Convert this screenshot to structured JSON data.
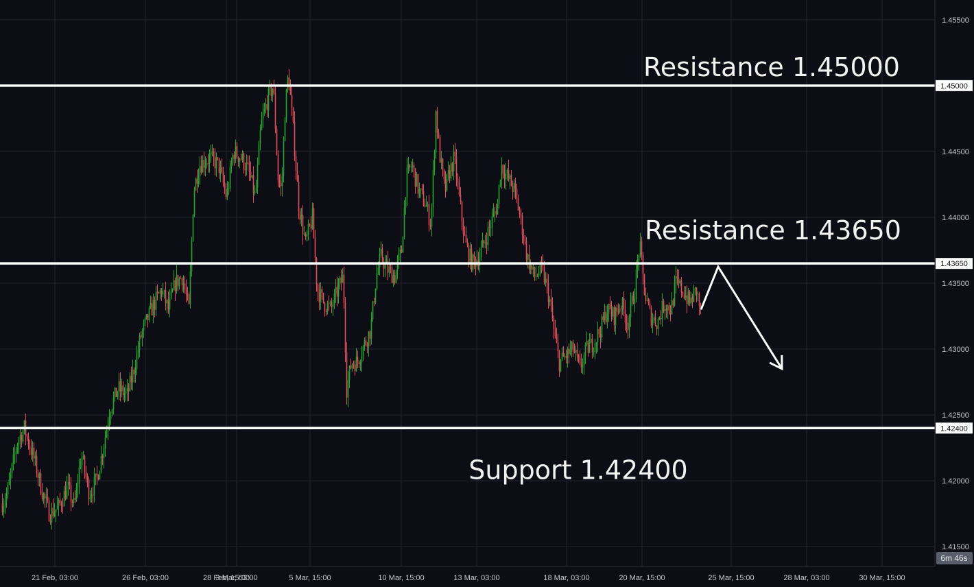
{
  "chart_data": {
    "type": "candlestick",
    "ylim": [
      1.4135,
      1.4565
    ],
    "grid": true,
    "colors": {
      "background": "#0d0d16",
      "grid": "#24252f",
      "up": "#26a82f",
      "down": "#e2505b",
      "level_line": "#ffffff",
      "axis_text": "#c9cbd3"
    },
    "y_ticks": [
      {
        "value": 1.455,
        "label": "1.45500"
      },
      {
        "value": 1.445,
        "label": "1.44500"
      },
      {
        "value": 1.44,
        "label": "1.44000"
      },
      {
        "value": 1.435,
        "label": "1.43500"
      },
      {
        "value": 1.43,
        "label": "1.43000"
      },
      {
        "value": 1.425,
        "label": "1.42500"
      },
      {
        "value": 1.42,
        "label": "1.42000"
      },
      {
        "value": 1.415,
        "label": "1.41500"
      }
    ],
    "x_ticks": [
      {
        "index": 80,
        "label": "21 Feb, 03:00"
      },
      {
        "index": 212,
        "label": "26 Feb, 03:00"
      },
      {
        "index": 330,
        "label": "28 Feb, 15:00"
      },
      {
        "index": 345,
        "label": "3 Mar, 03:00"
      },
      {
        "index": 452,
        "label": "5 Mar, 15:00"
      },
      {
        "index": 585,
        "label": "10 Mar, 15:00"
      },
      {
        "index": 695,
        "label": "13 Mar, 03:00"
      },
      {
        "index": 826,
        "label": "18 Mar, 03:00"
      },
      {
        "index": 936,
        "label": "20 Mar, 15:00"
      },
      {
        "index": 1066,
        "label": "25 Mar, 15:00"
      },
      {
        "index": 1176,
        "label": "28 Mar, 03:00"
      },
      {
        "index": 1286,
        "label": "30 Mar, 15:00"
      }
    ],
    "levels": [
      {
        "value": 1.45,
        "tag": "1.45000",
        "label": "Resistance 1.45000"
      },
      {
        "value": 1.4365,
        "tag": "1.43650",
        "label": "Resistance 1.43650"
      },
      {
        "value": 1.424,
        "tag": "1.42400",
        "label": "Support 1.42400"
      }
    ],
    "price_path": [
      [
        0,
        1.418
      ],
      [
        10,
        1.419
      ],
      [
        25,
        1.423
      ],
      [
        35,
        1.424
      ],
      [
        50,
        1.4215
      ],
      [
        62,
        1.419
      ],
      [
        72,
        1.4175
      ],
      [
        85,
        1.418
      ],
      [
        98,
        1.4195
      ],
      [
        108,
        1.418
      ],
      [
        118,
        1.422
      ],
      [
        130,
        1.419
      ],
      [
        140,
        1.42
      ],
      [
        150,
        1.4225
      ],
      [
        160,
        1.4255
      ],
      [
        172,
        1.427
      ],
      [
        185,
        1.4265
      ],
      [
        195,
        1.4285
      ],
      [
        205,
        1.431
      ],
      [
        220,
        1.433
      ],
      [
        235,
        1.4345
      ],
      [
        245,
        1.433
      ],
      [
        255,
        1.435
      ],
      [
        265,
        1.4355
      ],
      [
        275,
        1.433
      ],
      [
        282,
        1.442
      ],
      [
        290,
        1.444
      ],
      [
        305,
        1.4445
      ],
      [
        318,
        1.444
      ],
      [
        330,
        1.4415
      ],
      [
        340,
        1.445
      ],
      [
        352,
        1.4445
      ],
      [
        362,
        1.4435
      ],
      [
        372,
        1.4415
      ],
      [
        380,
        1.447
      ],
      [
        390,
        1.449
      ],
      [
        398,
        1.45
      ],
      [
        405,
        1.443
      ],
      [
        410,
        1.442
      ],
      [
        415,
        1.448
      ],
      [
        420,
        1.451
      ],
      [
        428,
        1.446
      ],
      [
        435,
        1.441
      ],
      [
        445,
        1.438
      ],
      [
        455,
        1.44
      ],
      [
        462,
        1.4345
      ],
      [
        472,
        1.4335
      ],
      [
        482,
        1.433
      ],
      [
        492,
        1.4345
      ],
      [
        500,
        1.4355
      ],
      [
        505,
        1.427
      ],
      [
        512,
        1.429
      ],
      [
        520,
        1.429
      ],
      [
        528,
        1.43
      ],
      [
        540,
        1.4315
      ],
      [
        548,
        1.4355
      ],
      [
        555,
        1.437
      ],
      [
        565,
        1.436
      ],
      [
        575,
        1.4355
      ],
      [
        585,
        1.4375
      ],
      [
        592,
        1.443
      ],
      [
        600,
        1.444
      ],
      [
        610,
        1.442
      ],
      [
        620,
        1.441
      ],
      [
        628,
        1.4395
      ],
      [
        635,
        1.448
      ],
      [
        640,
        1.445
      ],
      [
        648,
        1.442
      ],
      [
        655,
        1.4435
      ],
      [
        662,
        1.4445
      ],
      [
        670,
        1.441
      ],
      [
        678,
        1.438
      ],
      [
        688,
        1.4365
      ],
      [
        698,
        1.437
      ],
      [
        705,
        1.438
      ],
      [
        715,
        1.4395
      ],
      [
        725,
        1.441
      ],
      [
        730,
        1.444
      ],
      [
        740,
        1.443
      ],
      [
        750,
        1.442
      ],
      [
        760,
        1.4395
      ],
      [
        768,
        1.437
      ],
      [
        778,
        1.4355
      ],
      [
        790,
        1.436
      ],
      [
        800,
        1.434
      ],
      [
        808,
        1.431
      ],
      [
        815,
        1.429
      ],
      [
        825,
        1.4295
      ],
      [
        835,
        1.43
      ],
      [
        845,
        1.4285
      ],
      [
        855,
        1.43
      ],
      [
        865,
        1.4305
      ],
      [
        875,
        1.4315
      ],
      [
        885,
        1.433
      ],
      [
        895,
        1.4325
      ],
      [
        905,
        1.4335
      ],
      [
        915,
        1.432
      ],
      [
        925,
        1.4345
      ],
      [
        932,
        1.438
      ],
      [
        940,
        1.434
      ],
      [
        948,
        1.4325
      ],
      [
        958,
        1.432
      ],
      [
        968,
        1.4335
      ],
      [
        978,
        1.433
      ],
      [
        985,
        1.435
      ],
      [
        995,
        1.4345
      ],
      [
        1005,
        1.4335
      ],
      [
        1015,
        1.4345
      ],
      [
        1022,
        1.4325
      ]
    ],
    "last_index": 1022,
    "projection": [
      [
        1022,
        1.433
      ],
      [
        1047,
        1.43625
      ],
      [
        1140,
        1.4285
      ]
    ]
  },
  "timer": "6m 46s"
}
